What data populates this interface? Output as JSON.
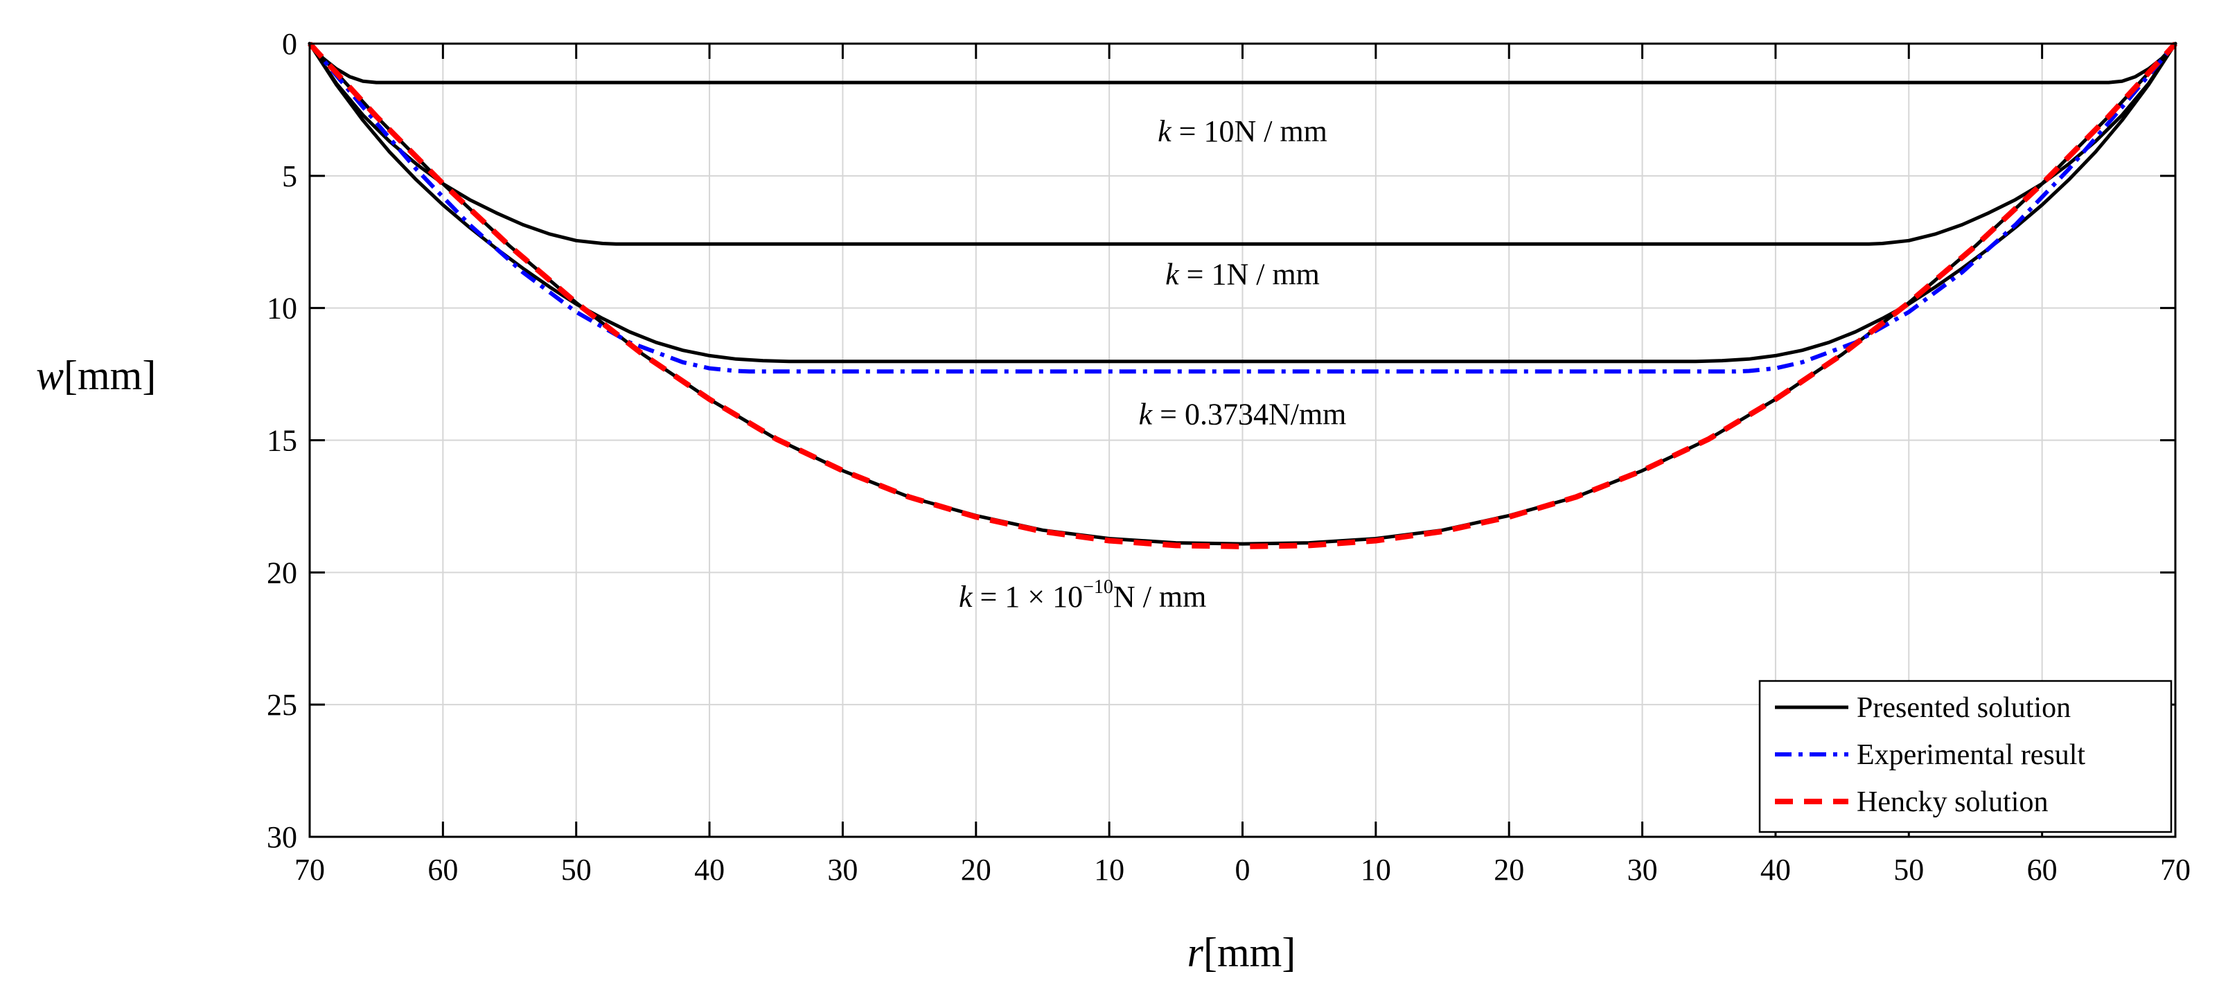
{
  "chart_data": {
    "type": "line",
    "title": "",
    "xlabel": {
      "var": "r",
      "unit": "[mm]"
    },
    "ylabel": {
      "var": "w",
      "unit": "[mm]"
    },
    "x_domain": [
      -70,
      70
    ],
    "ylim": [
      0,
      30
    ],
    "y_inverted": true,
    "x_ticks": [
      -70,
      -60,
      -50,
      -40,
      -30,
      -20,
      -10,
      0,
      10,
      20,
      30,
      40,
      50,
      60,
      70
    ],
    "x_tick_labels": [
      "70",
      "60",
      "50",
      "40",
      "30",
      "20",
      "10",
      "0",
      "10",
      "20",
      "30",
      "40",
      "50",
      "60",
      "70"
    ],
    "y_ticks": [
      0,
      5,
      10,
      15,
      20,
      25,
      30
    ],
    "y_tick_labels": [
      "0",
      "5",
      "10",
      "15",
      "20",
      "25",
      "30"
    ],
    "grid": true,
    "legend_position": "bottom-right",
    "colors": {
      "presented": "#000000",
      "experimental": "#0000ff",
      "hencky": "#ff0000",
      "grid": "#d6d6d6"
    },
    "series": [
      {
        "name": "Presented solution",
        "k": "10N / mm",
        "style": "solid",
        "color": "#000000",
        "x": [
          -70,
          -69,
          -68,
          -67,
          -66,
          -65,
          -60,
          -50,
          -40,
          -30,
          -20,
          -10,
          0,
          10,
          20,
          30,
          40,
          50,
          60,
          65,
          66,
          67,
          68,
          69,
          70
        ],
        "y": [
          0,
          0.55,
          0.95,
          1.25,
          1.42,
          1.47,
          1.47,
          1.47,
          1.47,
          1.47,
          1.47,
          1.47,
          1.47,
          1.47,
          1.47,
          1.47,
          1.47,
          1.47,
          1.47,
          1.47,
          1.42,
          1.25,
          0.95,
          0.55,
          0
        ]
      },
      {
        "name": "Presented solution",
        "k": "1N / mm",
        "style": "solid",
        "color": "#000000",
        "x": [
          -70,
          -68,
          -66,
          -64,
          -62,
          -60,
          -58,
          -56,
          -54,
          -52,
          -50,
          -48,
          -47,
          -40,
          -30,
          -20,
          -10,
          0,
          10,
          20,
          30,
          40,
          47,
          48,
          50,
          52,
          54,
          56,
          58,
          60,
          62,
          64,
          66,
          68,
          70
        ],
        "y": [
          0,
          1.5,
          2.7,
          3.7,
          4.55,
          5.3,
          5.9,
          6.4,
          6.85,
          7.2,
          7.45,
          7.56,
          7.58,
          7.58,
          7.58,
          7.58,
          7.58,
          7.58,
          7.58,
          7.58,
          7.58,
          7.58,
          7.58,
          7.56,
          7.45,
          7.2,
          6.85,
          6.4,
          5.9,
          5.3,
          4.55,
          3.7,
          2.7,
          1.5,
          0
        ]
      },
      {
        "name": "Presented solution",
        "k": "0.3734N/mm",
        "style": "solid",
        "color": "#000000",
        "x": [
          -70,
          -68,
          -66,
          -64,
          -62,
          -60,
          -58,
          -56,
          -54,
          -52,
          -50,
          -48,
          -46,
          -44,
          -42,
          -40,
          -38,
          -36,
          -34,
          -33,
          -30,
          -20,
          -10,
          0,
          10,
          20,
          30,
          33,
          34,
          36,
          38,
          40,
          42,
          44,
          46,
          48,
          50,
          52,
          54,
          56,
          58,
          60,
          62,
          64,
          66,
          68,
          70
        ],
        "y": [
          0,
          1.55,
          2.9,
          4.1,
          5.15,
          6.1,
          6.95,
          7.75,
          8.5,
          9.2,
          9.85,
          10.4,
          10.9,
          11.3,
          11.6,
          11.8,
          11.93,
          11.99,
          12.02,
          12.02,
          12.02,
          12.02,
          12.02,
          12.02,
          12.02,
          12.02,
          12.02,
          12.02,
          12.02,
          11.99,
          11.93,
          11.8,
          11.6,
          11.3,
          10.9,
          10.4,
          9.85,
          9.2,
          8.5,
          7.75,
          6.95,
          6.1,
          5.15,
          4.1,
          2.9,
          1.55,
          0
        ]
      },
      {
        "name": "Presented solution",
        "k": "1×10⁻¹⁰N / mm",
        "style": "solid",
        "color": "#000000",
        "x": [
          -70,
          -65,
          -60,
          -55,
          -50,
          -45,
          -40,
          -35,
          -30,
          -25,
          -20,
          -15,
          -10,
          -5,
          0,
          5,
          10,
          15,
          20,
          25,
          30,
          35,
          40,
          45,
          50,
          55,
          60,
          65,
          70
        ],
        "y": [
          0,
          2.75,
          5.3,
          7.65,
          9.8,
          11.75,
          13.45,
          14.95,
          16.15,
          17.15,
          17.85,
          18.4,
          18.72,
          18.88,
          18.92,
          18.88,
          18.72,
          18.4,
          17.85,
          17.15,
          16.15,
          14.95,
          13.45,
          11.75,
          9.8,
          7.65,
          5.3,
          2.75,
          0
        ]
      },
      {
        "name": "Experimental result",
        "style": "dashdot",
        "color": "#0000ff",
        "x": [
          -70,
          -66,
          -62,
          -58,
          -54,
          -50,
          -46,
          -42,
          -40,
          -38,
          -37,
          -30,
          -20,
          -10,
          0,
          10,
          20,
          30,
          37,
          38,
          40,
          42,
          46,
          50,
          54,
          58,
          62,
          66,
          70
        ],
        "y": [
          0,
          2.4,
          4.75,
          6.85,
          8.65,
          10.15,
          11.3,
          12.05,
          12.28,
          12.38,
          12.4,
          12.4,
          12.4,
          12.4,
          12.4,
          12.4,
          12.4,
          12.4,
          12.4,
          12.38,
          12.28,
          12.05,
          11.3,
          10.15,
          8.65,
          6.85,
          4.75,
          2.4,
          0
        ]
      },
      {
        "name": "Hencky solution",
        "style": "dashed",
        "color": "#ff0000",
        "x": [
          -70,
          -65,
          -60,
          -55,
          -50,
          -45,
          -40,
          -35,
          -30,
          -25,
          -20,
          -15,
          -10,
          -5,
          0,
          5,
          10,
          15,
          20,
          25,
          30,
          35,
          40,
          45,
          50,
          55,
          60,
          65,
          70
        ],
        "y": [
          0,
          2.75,
          5.3,
          7.65,
          9.8,
          11.75,
          13.45,
          14.95,
          16.15,
          17.15,
          17.9,
          18.45,
          18.8,
          18.98,
          19.02,
          18.98,
          18.8,
          18.45,
          17.9,
          17.15,
          16.15,
          14.95,
          13.45,
          11.75,
          9.8,
          7.65,
          5.3,
          2.75,
          0
        ]
      }
    ],
    "annotations": [
      {
        "text_pre": "k",
        "text_mid": " = 10N / mm",
        "text_sup": "",
        "text_post": "",
        "x": 0,
        "y": 3.7
      },
      {
        "text_pre": "k",
        "text_mid": " = 1N / mm",
        "text_sup": "",
        "text_post": "",
        "x": 0,
        "y": 9.1
      },
      {
        "text_pre": "k",
        "text_mid": " = 0.3734N/mm",
        "text_sup": "",
        "text_post": "",
        "x": 0,
        "y": 14.4
      },
      {
        "text_pre": "k",
        "text_mid": " = 1 × 10",
        "text_sup": "−10",
        "text_post": "N / mm",
        "x": -12,
        "y": 21.3
      }
    ],
    "legend": [
      "Presented solution",
      "Experimental result",
      "Hencky solution"
    ]
  }
}
